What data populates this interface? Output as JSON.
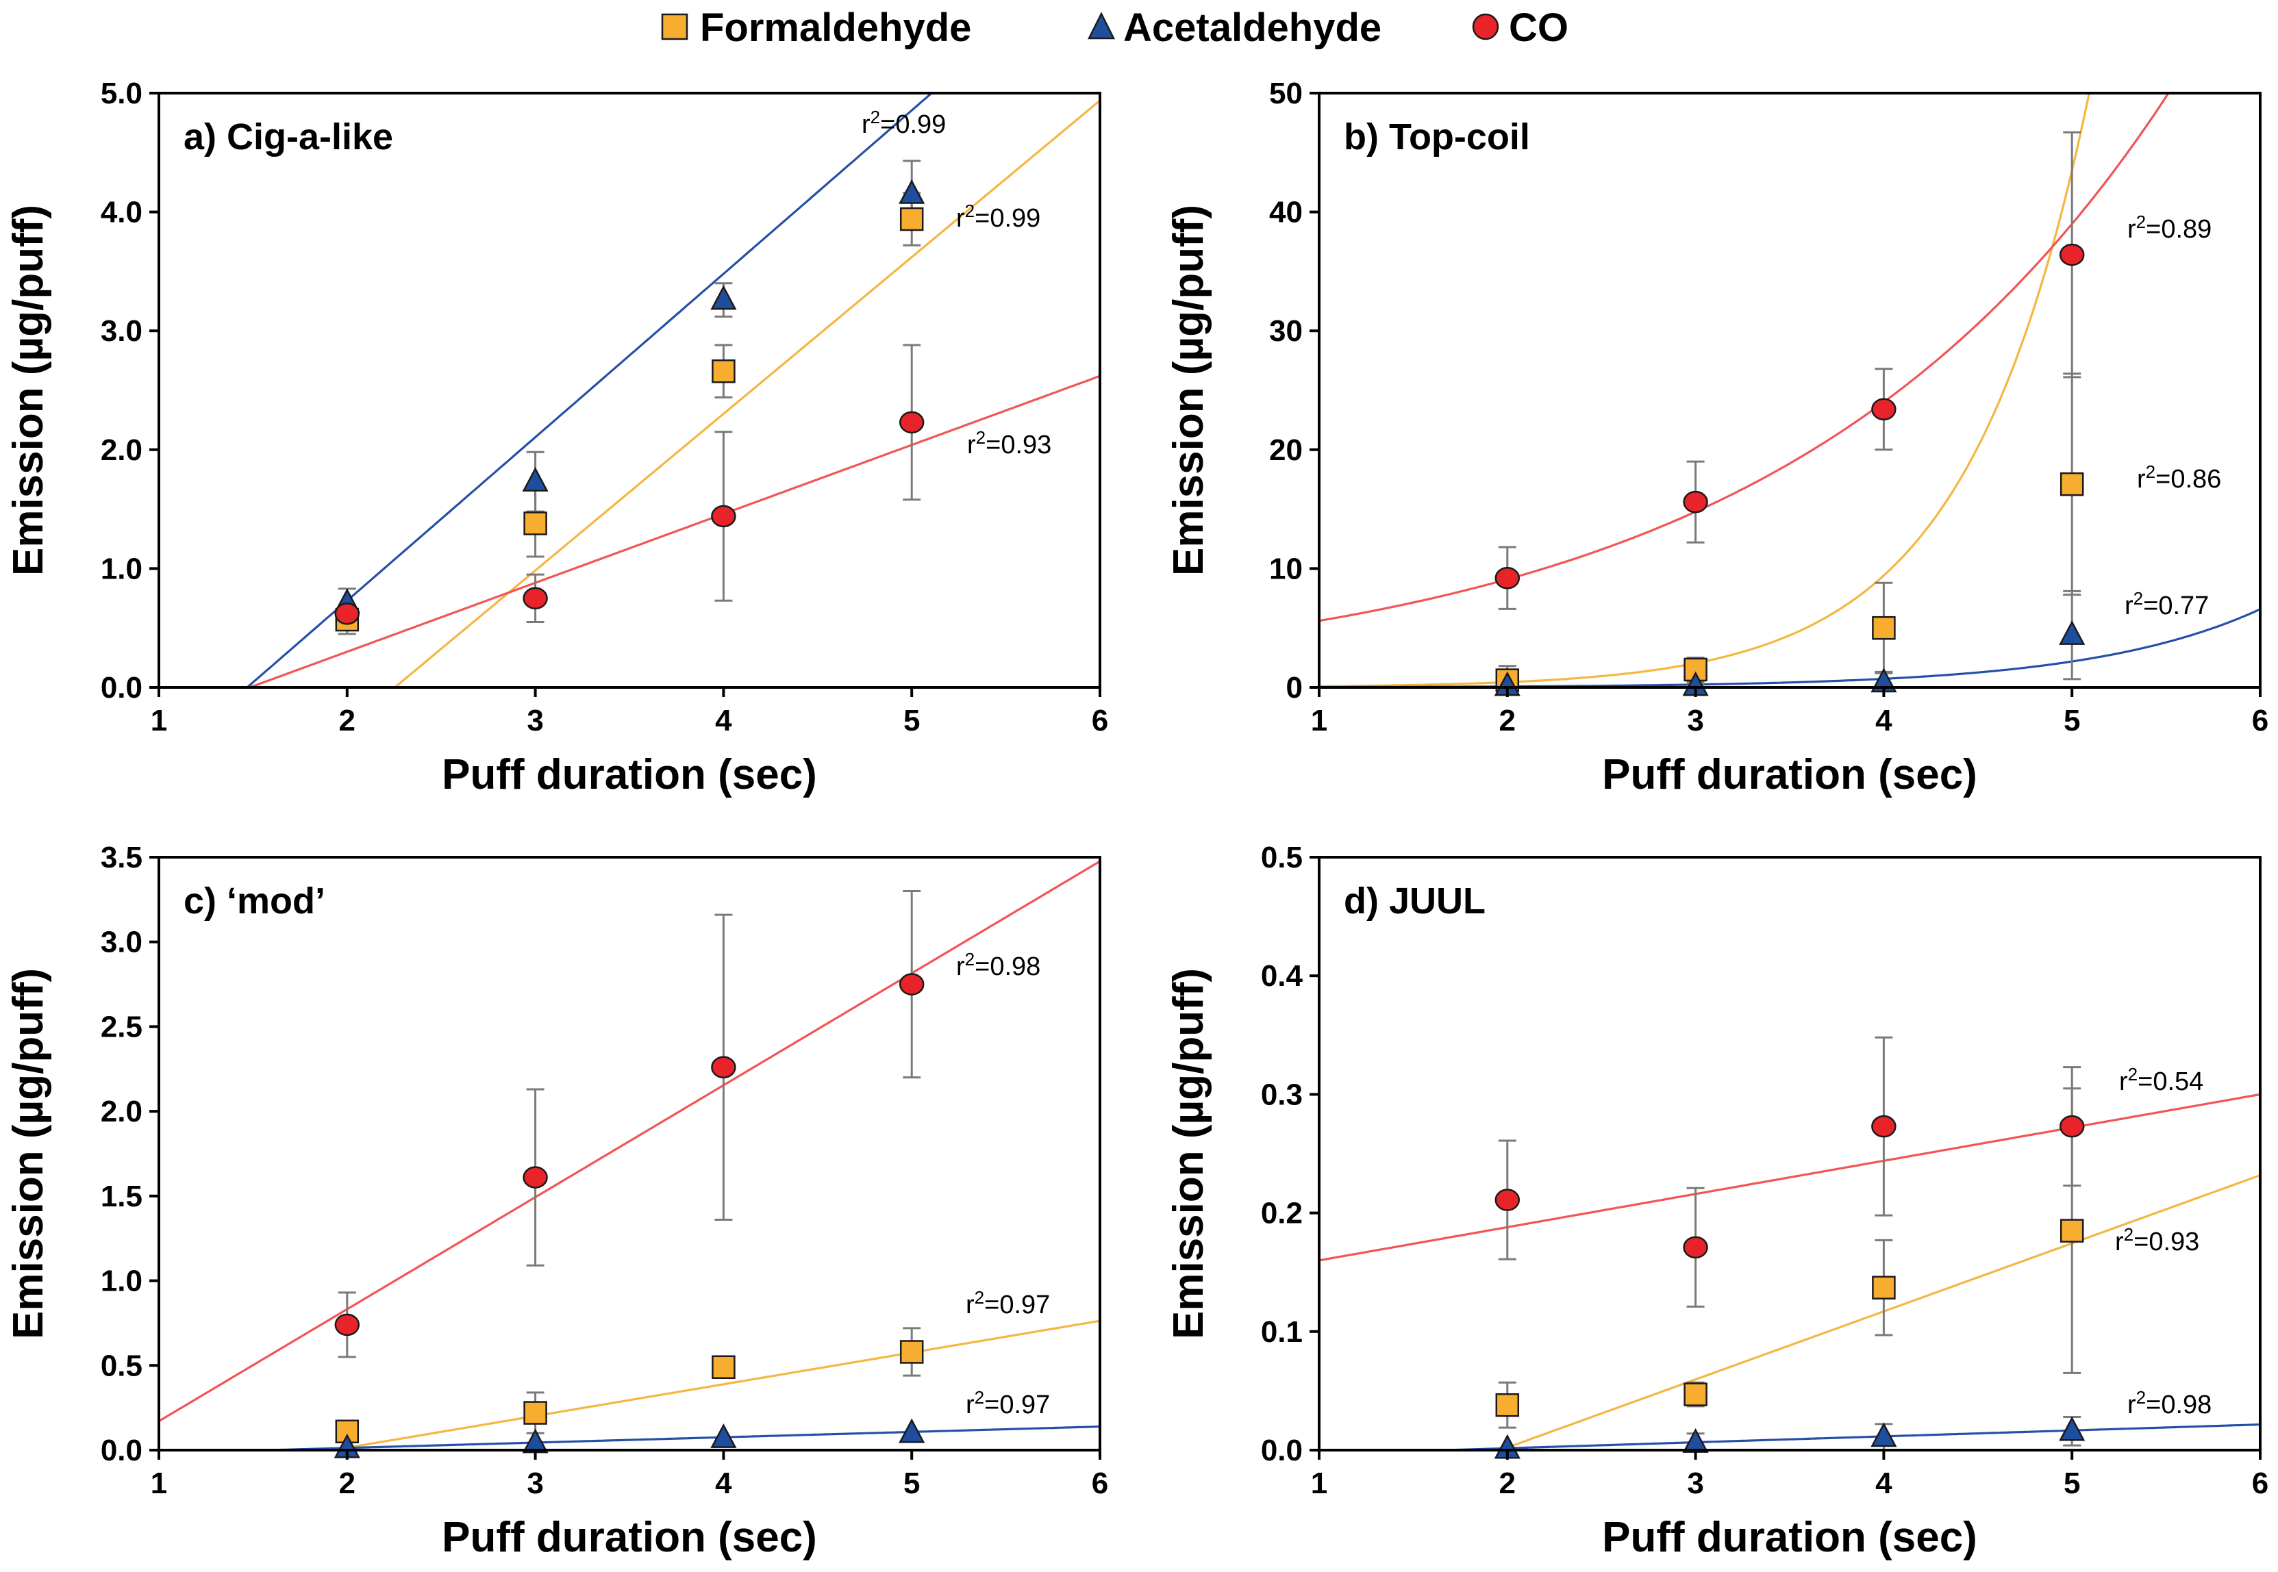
{
  "colors": {
    "formaldehyde": "#F7AD2F",
    "acetaldehyde": "#1F4E9E",
    "co": "#E8232A",
    "formaldehyde_line": "#F5B642",
    "acetaldehyde_line": "#2650A8",
    "co_line": "#F25555"
  },
  "legend": [
    {
      "key": "formaldehyde",
      "label": "Formaldehyde",
      "marker": "square-icon"
    },
    {
      "key": "acetaldehyde",
      "label": "Acetaldehyde",
      "marker": "triangle-icon"
    },
    {
      "key": "co",
      "label": "CO",
      "marker": "circle-icon"
    }
  ],
  "chart_data": [
    {
      "type": "scatter",
      "title": "a) Cig-a-like",
      "xlabel": "Puff duration (sec)",
      "ylabel": "Emission (µg/puff)",
      "xlim": [
        1,
        6
      ],
      "ylim": [
        0,
        5
      ],
      "xticks": [
        "1",
        "2",
        "3",
        "4",
        "5",
        "6"
      ],
      "yticks": [
        "0.0",
        "1.0",
        "2.0",
        "3.0",
        "4.0",
        "5.0"
      ],
      "series": [
        {
          "name": "Formaldehyde",
          "key": "formaldehyde",
          "x": [
            2,
            3,
            4,
            5
          ],
          "y": [
            0.57,
            1.38,
            2.66,
            3.94
          ],
          "err": [
            0.12,
            0.28,
            0.22,
            0.22
          ],
          "fit": {
            "kind": "linear",
            "a": -2.97,
            "b": 1.318
          },
          "r2": "0.99"
        },
        {
          "name": "Acetaldehyde",
          "key": "acetaldehyde",
          "x": [
            2,
            3,
            4,
            5
          ],
          "y": [
            0.71,
            1.73,
            3.26,
            4.15
          ],
          "err": [
            0.12,
            0.25,
            0.14,
            0.28
          ],
          "fit": {
            "kind": "linear",
            "a": -2.02,
            "b": 1.375
          },
          "r2": "0.99"
        },
        {
          "name": "CO",
          "key": "co",
          "x": [
            2,
            3,
            4,
            5
          ],
          "y": [
            0.62,
            0.75,
            1.44,
            2.23
          ],
          "err": [
            0.0,
            0.2,
            0.71,
            0.65
          ],
          "fit": {
            "kind": "linear",
            "a": -0.86,
            "b": 0.58
          },
          "r2": "0.93"
        }
      ]
    },
    {
      "type": "scatter",
      "title": "b) Top-coil",
      "xlabel": "Puff duration (sec)",
      "ylabel": "Emission (µg/puff)",
      "xlim": [
        1,
        6
      ],
      "ylim": [
        0,
        50
      ],
      "xticks": [
        "1",
        "2",
        "3",
        "4",
        "5",
        "6"
      ],
      "yticks": [
        "0",
        "10",
        "20",
        "30",
        "40",
        "50"
      ],
      "series": [
        {
          "name": "Formaldehyde",
          "key": "formaldehyde",
          "x": [
            2,
            3,
            4,
            5
          ],
          "y": [
            0.6,
            1.5,
            5.0,
            17.1
          ],
          "err": [
            1.2,
            1.0,
            3.8,
            9.3
          ],
          "fit": {
            "kind": "exp",
            "a": 0.0207,
            "b": 1.53
          },
          "r2": "0.86"
        },
        {
          "name": "Acetaldehyde",
          "key": "acetaldehyde",
          "x": [
            2,
            3,
            4,
            5
          ],
          "y": [
            0.1,
            0.1,
            0.4,
            4.4
          ],
          "err": [
            0.2,
            0.2,
            0.9,
            3.7
          ],
          "fit": {
            "kind": "exp",
            "a": 0.00874,
            "b": 1.104
          },
          "r2": "0.77"
        },
        {
          "name": "CO",
          "key": "co",
          "x": [
            2,
            3,
            4,
            5
          ],
          "y": [
            9.2,
            15.6,
            23.4,
            36.4
          ],
          "err": [
            2.6,
            3.4,
            3.4,
            10.3
          ],
          "fit": {
            "kind": "exp",
            "a": 3.45,
            "b": 0.485
          },
          "r2": "0.89"
        }
      ]
    },
    {
      "type": "scatter",
      "title": "c) ‘mod’",
      "xlabel": "Puff duration (sec)",
      "ylabel": "Emission (µg/puff)",
      "xlim": [
        1,
        6
      ],
      "ylim": [
        0,
        3.5
      ],
      "xticks": [
        "1",
        "2",
        "3",
        "4",
        "5",
        "6"
      ],
      "yticks": [
        "0.0",
        "0.5",
        "1.0",
        "1.5",
        "2.0",
        "2.5",
        "3.0",
        "3.5"
      ],
      "series": [
        {
          "name": "Formaldehyde",
          "key": "formaldehyde",
          "x": [
            2,
            3,
            4,
            5
          ],
          "y": [
            0.11,
            0.22,
            0.49,
            0.58
          ],
          "err": [
            0.04,
            0.12,
            0.0,
            0.14
          ],
          "fit": {
            "kind": "linear",
            "a": -0.36,
            "b": 0.1872
          },
          "r2": "0.97"
        },
        {
          "name": "Acetaldehyde",
          "key": "acetaldehyde",
          "x": [
            2,
            3,
            4,
            5
          ],
          "y": [
            0.01,
            0.04,
            0.07,
            0.1
          ],
          "err": [
            0.0,
            0.0,
            0.0,
            0.0
          ],
          "fit": {
            "kind": "linear",
            "a": -0.05,
            "b": 0.0315
          },
          "r2": "0.97"
        },
        {
          "name": "CO",
          "key": "co",
          "x": [
            2,
            3,
            4,
            5
          ],
          "y": [
            0.74,
            1.61,
            2.26,
            2.75
          ],
          "err": [
            0.19,
            0.52,
            0.9,
            0.55
          ],
          "fit": {
            "kind": "linear",
            "a": -0.49,
            "b": 0.661
          },
          "r2": "0.98"
        }
      ]
    },
    {
      "type": "scatter",
      "title": "d) JUUL",
      "xlabel": "Puff duration (sec)",
      "ylabel": "Emission (µg/puff)",
      "xlim": [
        1,
        6
      ],
      "ylim": [
        0,
        0.5
      ],
      "xticks": [
        "1",
        "2",
        "3",
        "4",
        "5",
        "6"
      ],
      "yticks": [
        "0.0",
        "0.1",
        "0.2",
        "0.3",
        "0.4",
        "0.5"
      ],
      "series": [
        {
          "name": "Formaldehyde",
          "key": "formaldehyde",
          "x": [
            2,
            3,
            4,
            5
          ],
          "y": [
            0.038,
            0.047,
            0.137,
            0.185
          ],
          "err": [
            0.019,
            0.01,
            0.04,
            0.12
          ],
          "fit": {
            "kind": "linear",
            "a": -0.1126,
            "b": 0.0574
          },
          "r2": "0.93"
        },
        {
          "name": "Acetaldehyde",
          "key": "acetaldehyde",
          "x": [
            2,
            3,
            4,
            5
          ],
          "y": [
            0.001,
            0.006,
            0.011,
            0.016
          ],
          "err": [
            0.0,
            0.008,
            0.011,
            0.012
          ],
          "fit": {
            "kind": "linear",
            "a": -0.0084,
            "b": 0.005
          },
          "r2": "0.98"
        },
        {
          "name": "CO",
          "key": "co",
          "x": [
            2,
            3,
            4,
            5
          ],
          "y": [
            0.211,
            0.171,
            0.273,
            0.273
          ],
          "err": [
            0.05,
            0.05,
            0.075,
            0.05
          ],
          "fit": {
            "kind": "linear",
            "a": 0.132,
            "b": 0.028
          },
          "r2": "0.54"
        }
      ]
    }
  ]
}
